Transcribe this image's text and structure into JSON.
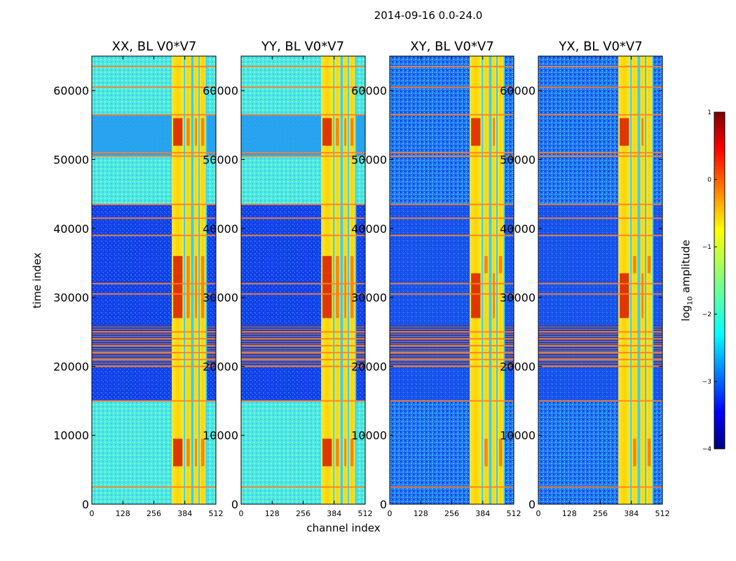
{
  "chart_data": {
    "type": "heatmap",
    "suptitle": "2014-09-16 0.0-24.0",
    "xlabel": "channel index",
    "ylabel": "time index",
    "xlim": [
      0,
      512
    ],
    "ylim": [
      0,
      65000
    ],
    "xticks": [
      0,
      128,
      256,
      384,
      512
    ],
    "yticks": [
      0,
      10000,
      20000,
      30000,
      40000,
      50000,
      60000
    ],
    "panels": [
      {
        "title": "XX, BL V0*V7",
        "background": "low-high"
      },
      {
        "title": "YY, BL V0*V7",
        "background": "low-high"
      },
      {
        "title": "XY, BL V0*V7",
        "background": "noise"
      },
      {
        "title": "YX, BL V0*V7",
        "background": "noise"
      }
    ],
    "colorbar": {
      "label_main": "log",
      "label_sub": "10",
      "label_tail": " amplitude",
      "range": [
        -4,
        1
      ],
      "ticks": [
        1,
        0,
        -1,
        -2,
        -3,
        -4
      ],
      "tick_labels": [
        "1",
        "0",
        "−1",
        "−2",
        "−3",
        "−4"
      ],
      "colormap": "jet"
    },
    "bright_channel_bands": [
      [
        330,
        380
      ],
      [
        385,
        410
      ],
      [
        420,
        440
      ],
      [
        445,
        470
      ]
    ],
    "flagged_time_rows": [
      2500,
      15000,
      20000,
      21000,
      22000,
      23000,
      24000,
      25000,
      30500,
      32000,
      39000,
      41500,
      43500,
      50500,
      51000,
      56500,
      60500,
      63500
    ]
  }
}
